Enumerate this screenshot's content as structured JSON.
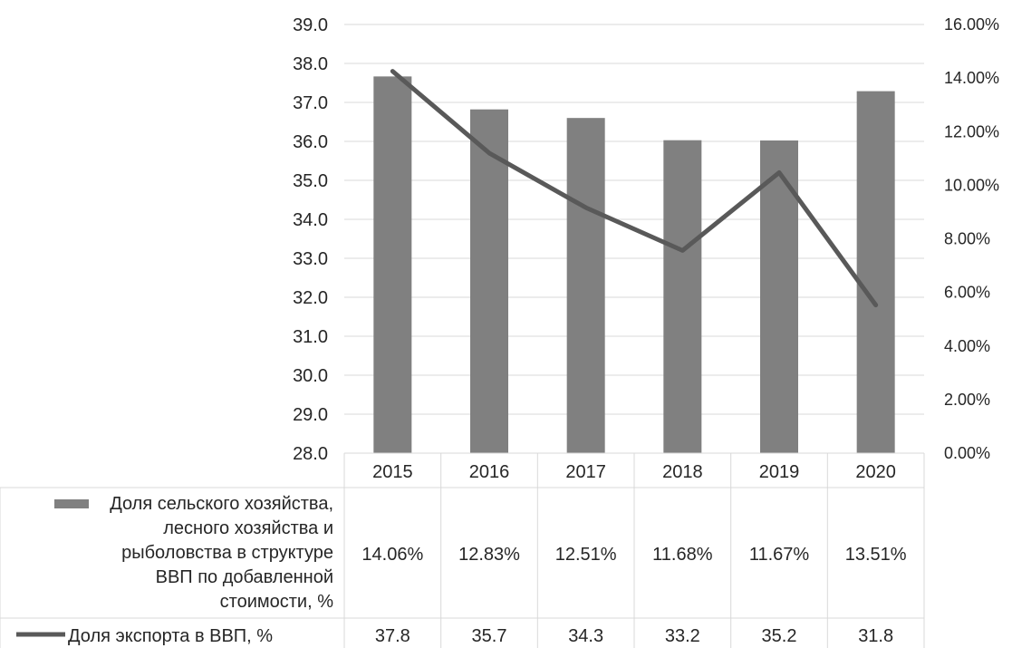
{
  "chart_data": {
    "type": "bar",
    "categories": [
      "2015",
      "2016",
      "2017",
      "2018",
      "2019",
      "2020"
    ],
    "series": [
      {
        "name": "Доля сельского хозяйства, лесного хозяйства и рыболовства в структуре ВВП по добавленной стоимости, %",
        "name_lines": [
          "Доля сельского хозяйства,",
          "лесного хозяйства и",
          "рыболовства в структуре",
          "ВВП по добавленной",
          "стоимости, %"
        ],
        "type": "bar",
        "axis": "right",
        "values": [
          14.06,
          12.83,
          12.51,
          11.68,
          11.67,
          13.51
        ],
        "labels": [
          "14.06%",
          "12.83%",
          "12.51%",
          "11.68%",
          "11.67%",
          "13.51%"
        ],
        "color": "#808080"
      },
      {
        "name": "Доля экспорта в ВВП, %",
        "type": "line",
        "axis": "left",
        "values": [
          37.8,
          35.7,
          34.3,
          33.2,
          35.2,
          31.8
        ],
        "labels": [
          "37.8",
          "35.7",
          "34.3",
          "33.2",
          "35.2",
          "31.8"
        ],
        "color": "#595959"
      }
    ],
    "y_left": {
      "min": 28,
      "max": 39,
      "step": 1,
      "ticks": [
        "28.0",
        "29.0",
        "30.0",
        "31.0",
        "32.0",
        "33.0",
        "34.0",
        "35.0",
        "36.0",
        "37.0",
        "38.0",
        "39.0"
      ]
    },
    "y_right": {
      "min": 0,
      "max": 16,
      "step": 2,
      "ticks": [
        "0.00%",
        "2.00%",
        "4.00%",
        "6.00%",
        "8.00%",
        "10.00%",
        "12.00%",
        "14.00%",
        "16.00%"
      ]
    },
    "grid": true,
    "data_table": true,
    "title": "",
    "xlabel": "",
    "ylabel": ""
  }
}
